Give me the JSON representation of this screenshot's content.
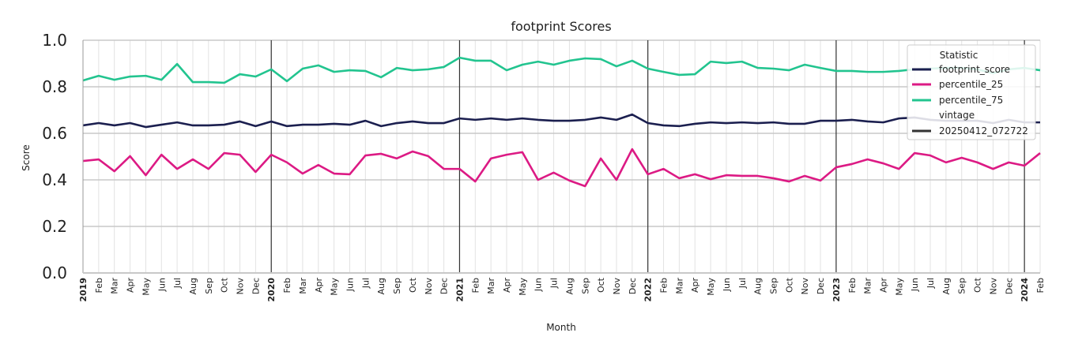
{
  "chart_data": {
    "type": "line",
    "title": "footprint Scores",
    "xlabel": "Month",
    "ylabel": "Score",
    "ylim": [
      0,
      1
    ],
    "yticks": [
      "0.0",
      "0.2",
      "0.4",
      "0.6",
      "0.8",
      "1.0"
    ],
    "grid": true,
    "legend_placement": "top-right",
    "legend": {
      "title": "Statistic",
      "subtitle": "vintage",
      "vintage_label": "20250412_072722"
    },
    "x": [
      "2019-01",
      "2019-02",
      "2019-03",
      "2019-04",
      "2019-05",
      "2019-06",
      "2019-07",
      "2019-08",
      "2019-09",
      "2019-10",
      "2019-11",
      "2019-12",
      "2020-01",
      "2020-02",
      "2020-03",
      "2020-04",
      "2020-05",
      "2020-06",
      "2020-07",
      "2020-08",
      "2020-09",
      "2020-10",
      "2020-11",
      "2020-12",
      "2021-01",
      "2021-02",
      "2021-03",
      "2021-04",
      "2021-05",
      "2021-06",
      "2021-07",
      "2021-08",
      "2021-09",
      "2021-10",
      "2021-11",
      "2021-12",
      "2022-01",
      "2022-02",
      "2022-03",
      "2022-04",
      "2022-05",
      "2022-06",
      "2022-07",
      "2022-08",
      "2022-09",
      "2022-10",
      "2022-11",
      "2022-12",
      "2023-01",
      "2023-02",
      "2023-03",
      "2023-04",
      "2023-05",
      "2023-06",
      "2023-07",
      "2023-08",
      "2023-09",
      "2023-10",
      "2023-11",
      "2023-12",
      "2024-01",
      "2024-02"
    ],
    "xtick_labels": [
      "2019",
      "Feb",
      "Mar",
      "Apr",
      "May",
      "Jun",
      "Jul",
      "Aug",
      "Sep",
      "Oct",
      "Nov",
      "Dec",
      "2020",
      "Feb",
      "Mar",
      "Apr",
      "May",
      "Jun",
      "Jul",
      "Aug",
      "Sep",
      "Oct",
      "Nov",
      "Dec",
      "2021",
      "Feb",
      "Mar",
      "Apr",
      "May",
      "Jun",
      "Jul",
      "Aug",
      "Sep",
      "Oct",
      "Nov",
      "Dec",
      "2022",
      "Feb",
      "Mar",
      "Apr",
      "May",
      "Jun",
      "Jul",
      "Aug",
      "Sep",
      "Oct",
      "Nov",
      "Dec",
      "2023",
      "Feb",
      "Mar",
      "Apr",
      "May",
      "Jun",
      "Jul",
      "Aug",
      "Sep",
      "Oct",
      "Nov",
      "Dec",
      "2024",
      "Feb"
    ],
    "vintage_lines": [
      "2020-01",
      "2021-01",
      "2022-01",
      "2023-01",
      "2024-01"
    ],
    "vintage_color": "#333333",
    "series": [
      {
        "name": "footprint_score",
        "color": "#1b1f4f",
        "values": [
          0.634,
          0.644,
          0.634,
          0.644,
          0.627,
          0.637,
          0.647,
          0.634,
          0.634,
          0.637,
          0.651,
          0.631,
          0.651,
          0.631,
          0.637,
          0.637,
          0.641,
          0.637,
          0.654,
          0.631,
          0.644,
          0.651,
          0.644,
          0.644,
          0.664,
          0.658,
          0.664,
          0.658,
          0.664,
          0.658,
          0.654,
          0.654,
          0.658,
          0.668,
          0.658,
          0.681,
          0.644,
          0.634,
          0.631,
          0.641,
          0.647,
          0.644,
          0.647,
          0.644,
          0.647,
          0.641,
          0.641,
          0.654,
          0.654,
          0.658,
          0.651,
          0.647,
          0.664,
          0.668,
          0.658,
          0.654,
          0.654,
          0.654,
          0.644,
          0.658,
          0.647,
          0.647
        ]
      },
      {
        "name": "percentile_25",
        "color": "#dc1a84",
        "values": [
          0.481,
          0.488,
          0.437,
          0.502,
          0.42,
          0.508,
          0.447,
          0.488,
          0.447,
          0.515,
          0.508,
          0.434,
          0.508,
          0.475,
          0.427,
          0.464,
          0.427,
          0.424,
          0.505,
          0.512,
          0.492,
          0.522,
          0.502,
          0.447,
          0.447,
          0.393,
          0.492,
          0.508,
          0.519,
          0.4,
          0.431,
          0.397,
          0.373,
          0.492,
          0.4,
          0.532,
          0.424,
          0.447,
          0.407,
          0.424,
          0.403,
          0.42,
          0.417,
          0.417,
          0.407,
          0.393,
          0.417,
          0.397,
          0.454,
          0.468,
          0.488,
          0.471,
          0.447,
          0.515,
          0.505,
          0.475,
          0.495,
          0.475,
          0.447,
          0.475,
          0.461,
          0.515
        ]
      },
      {
        "name": "percentile_75",
        "color": "#22c48f",
        "values": [
          0.827,
          0.847,
          0.83,
          0.844,
          0.847,
          0.83,
          0.898,
          0.82,
          0.82,
          0.817,
          0.854,
          0.844,
          0.875,
          0.824,
          0.878,
          0.892,
          0.864,
          0.871,
          0.868,
          0.841,
          0.881,
          0.871,
          0.875,
          0.885,
          0.925,
          0.912,
          0.912,
          0.871,
          0.895,
          0.908,
          0.895,
          0.912,
          0.922,
          0.919,
          0.888,
          0.912,
          0.878,
          0.864,
          0.851,
          0.854,
          0.908,
          0.902,
          0.908,
          0.881,
          0.878,
          0.871,
          0.895,
          0.881,
          0.868,
          0.868,
          0.864,
          0.864,
          0.868,
          0.875,
          0.878,
          0.881,
          0.881,
          0.875,
          0.858,
          0.875,
          0.881,
          0.871
        ]
      }
    ]
  }
}
